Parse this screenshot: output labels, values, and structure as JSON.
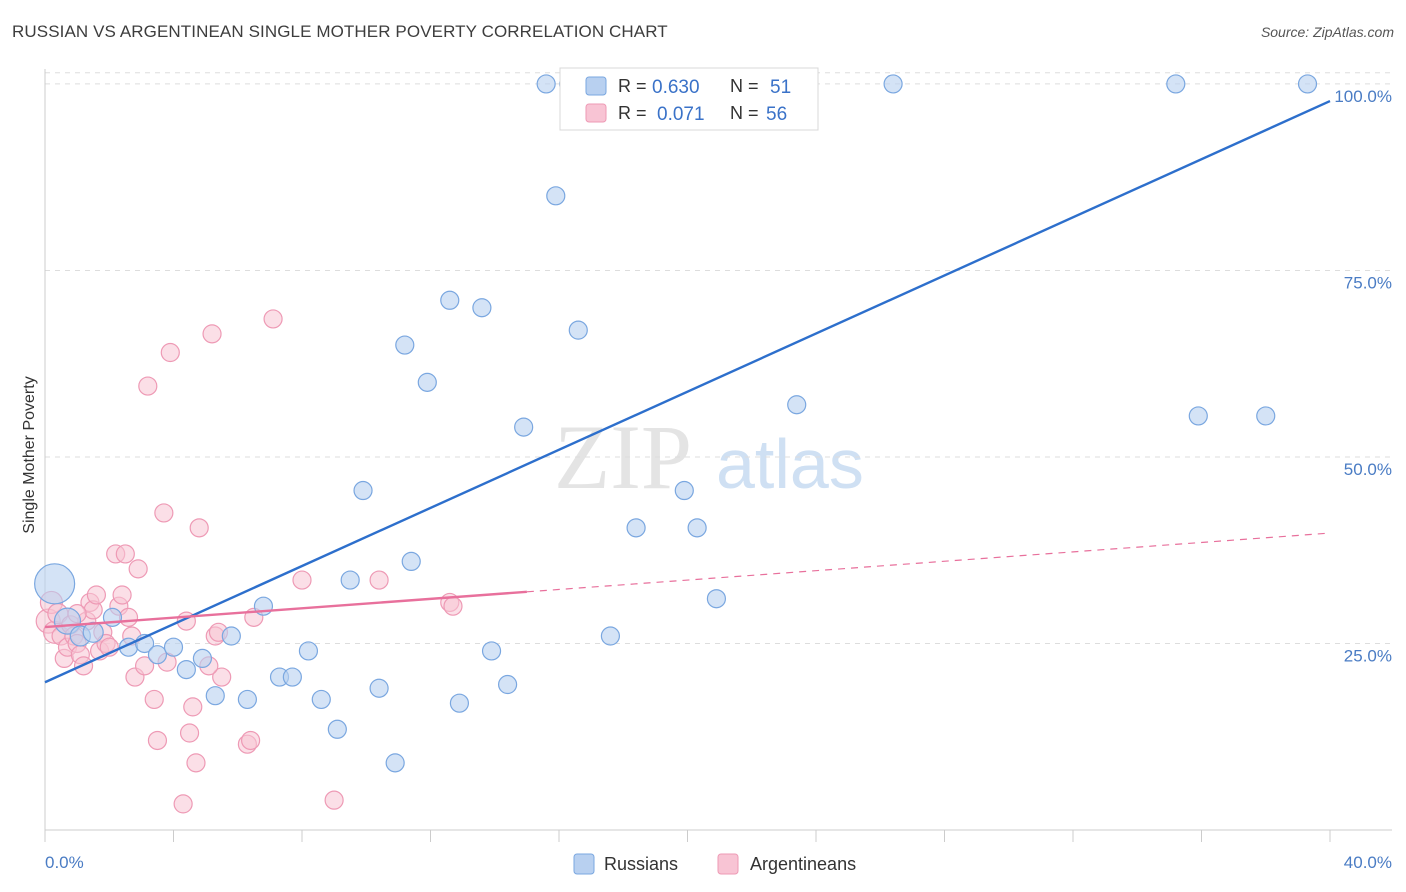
{
  "header": {
    "title": "RUSSIAN VS ARGENTINEAN SINGLE MOTHER POVERTY CORRELATION CHART",
    "source": "Source: ZipAtlas.com"
  },
  "watermark": {
    "zip": "ZIP",
    "atlas": "atlas"
  },
  "legend": {
    "r_label": "R =",
    "n_label": "N =",
    "rows": [
      {
        "r": "0.630",
        "n": "51"
      },
      {
        "r": "0.071",
        "n": "56"
      }
    ]
  },
  "bottom_legend": [
    "Russians",
    "Argentineans"
  ],
  "axis": {
    "x_left": "0.0%",
    "x_right": "40.0%",
    "y_ticks": [
      "100.0%",
      "75.0%",
      "50.0%",
      "25.0%"
    ],
    "ylabel": "Single Mother Poverty"
  },
  "colors": {
    "russians_fill": "#b8d0f0",
    "russians_stroke": "#7aa7e0",
    "russians_line": "#2d6fcc",
    "argentineans_fill": "#f8c4d4",
    "argentineans_stroke": "#ee9ab5",
    "argentineans_line": "#e8709c",
    "tick_label": "#4a7cc4",
    "grid": "#dddddd"
  },
  "chart_data": {
    "type": "scatter",
    "xlim": [
      0,
      40
    ],
    "ylim": [
      0,
      102
    ],
    "y_ticks": [
      25,
      50,
      75,
      100
    ],
    "grid": true,
    "legend_position": "top-center",
    "series": [
      {
        "name": "Russians",
        "r": 0.63,
        "n": 51,
        "trend": {
          "x": [
            0,
            40
          ],
          "y": [
            19.8,
            97.7
          ],
          "dashed_from": null
        },
        "points": [
          {
            "x": 0.3,
            "y": 33.0,
            "s": 20
          },
          {
            "x": 0.7,
            "y": 28.0,
            "s": 13
          },
          {
            "x": 1.1,
            "y": 26.0,
            "s": 10
          },
          {
            "x": 1.5,
            "y": 26.5,
            "s": 10
          },
          {
            "x": 2.1,
            "y": 28.5,
            "s": 9
          },
          {
            "x": 2.6,
            "y": 24.5,
            "s": 9
          },
          {
            "x": 3.1,
            "y": 25.0,
            "s": 9
          },
          {
            "x": 3.5,
            "y": 23.5,
            "s": 9
          },
          {
            "x": 4.0,
            "y": 24.5,
            "s": 9
          },
          {
            "x": 4.4,
            "y": 21.5,
            "s": 9
          },
          {
            "x": 4.9,
            "y": 23.0,
            "s": 9
          },
          {
            "x": 5.3,
            "y": 18.0,
            "s": 9
          },
          {
            "x": 5.8,
            "y": 26.0,
            "s": 9
          },
          {
            "x": 6.3,
            "y": 17.5,
            "s": 9
          },
          {
            "x": 6.8,
            "y": 30.0,
            "s": 9
          },
          {
            "x": 7.3,
            "y": 20.5,
            "s": 9
          },
          {
            "x": 7.7,
            "y": 20.5,
            "s": 9
          },
          {
            "x": 8.2,
            "y": 24.0,
            "s": 9
          },
          {
            "x": 8.6,
            "y": 17.5,
            "s": 9
          },
          {
            "x": 9.1,
            "y": 13.5,
            "s": 9
          },
          {
            "x": 9.5,
            "y": 33.5,
            "s": 9
          },
          {
            "x": 9.9,
            "y": 45.5,
            "s": 9
          },
          {
            "x": 10.4,
            "y": 19.0,
            "s": 9
          },
          {
            "x": 10.9,
            "y": 9.0,
            "s": 9
          },
          {
            "x": 11.2,
            "y": 65.0,
            "s": 9
          },
          {
            "x": 11.4,
            "y": 36.0,
            "s": 9
          },
          {
            "x": 11.9,
            "y": 60.0,
            "s": 9
          },
          {
            "x": 12.6,
            "y": 71.0,
            "s": 9
          },
          {
            "x": 12.9,
            "y": 17.0,
            "s": 9
          },
          {
            "x": 13.6,
            "y": 70.0,
            "s": 9
          },
          {
            "x": 13.9,
            "y": 24.0,
            "s": 9
          },
          {
            "x": 14.4,
            "y": 19.5,
            "s": 9
          },
          {
            "x": 15.6,
            "y": 100.0,
            "s": 9
          },
          {
            "x": 15.9,
            "y": 85.0,
            "s": 9
          },
          {
            "x": 16.3,
            "y": 100.0,
            "s": 9
          },
          {
            "x": 16.6,
            "y": 67.0,
            "s": 9
          },
          {
            "x": 17.3,
            "y": 100.0,
            "s": 9
          },
          {
            "x": 17.6,
            "y": 26.0,
            "s": 9
          },
          {
            "x": 18.4,
            "y": 40.5,
            "s": 9
          },
          {
            "x": 19.9,
            "y": 45.5,
            "s": 9
          },
          {
            "x": 20.3,
            "y": 40.5,
            "s": 9
          },
          {
            "x": 20.9,
            "y": 31.0,
            "s": 9
          },
          {
            "x": 21.4,
            "y": 100.0,
            "s": 9
          },
          {
            "x": 22.5,
            "y": 100.0,
            "s": 9
          },
          {
            "x": 23.4,
            "y": 57.0,
            "s": 9
          },
          {
            "x": 26.4,
            "y": 100.0,
            "s": 9
          },
          {
            "x": 35.2,
            "y": 100.0,
            "s": 9
          },
          {
            "x": 35.9,
            "y": 55.5,
            "s": 9
          },
          {
            "x": 38.0,
            "y": 55.5,
            "s": 9
          },
          {
            "x": 39.3,
            "y": 100.0,
            "s": 9
          },
          {
            "x": 14.9,
            "y": 54.0,
            "s": 9
          }
        ]
      },
      {
        "name": "Argentineans",
        "r": 0.071,
        "n": 56,
        "trend": {
          "x": [
            0,
            40
          ],
          "y": [
            27.2,
            39.8
          ],
          "dashed_from": 15
        },
        "points": [
          {
            "x": 0.1,
            "y": 28.0,
            "s": 12
          },
          {
            "x": 0.2,
            "y": 30.5,
            "s": 11
          },
          {
            "x": 0.3,
            "y": 26.5,
            "s": 11
          },
          {
            "x": 0.4,
            "y": 29.0,
            "s": 10
          },
          {
            "x": 0.5,
            "y": 26.0,
            "s": 9
          },
          {
            "x": 0.6,
            "y": 23.0,
            "s": 9
          },
          {
            "x": 0.7,
            "y": 24.5,
            "s": 9
          },
          {
            "x": 0.8,
            "y": 27.5,
            "s": 9
          },
          {
            "x": 0.9,
            "y": 26.0,
            "s": 9
          },
          {
            "x": 1.0,
            "y": 25.0,
            "s": 9
          },
          {
            "x": 1.1,
            "y": 23.5,
            "s": 9
          },
          {
            "x": 1.2,
            "y": 22.0,
            "s": 9
          },
          {
            "x": 1.3,
            "y": 28.0,
            "s": 9
          },
          {
            "x": 1.4,
            "y": 30.5,
            "s": 9
          },
          {
            "x": 1.5,
            "y": 29.5,
            "s": 9
          },
          {
            "x": 1.6,
            "y": 31.5,
            "s": 9
          },
          {
            "x": 1.7,
            "y": 24.0,
            "s": 9
          },
          {
            "x": 1.8,
            "y": 26.5,
            "s": 9
          },
          {
            "x": 1.9,
            "y": 25.0,
            "s": 9
          },
          {
            "x": 2.0,
            "y": 24.5,
            "s": 9
          },
          {
            "x": 2.2,
            "y": 37.0,
            "s": 9
          },
          {
            "x": 2.3,
            "y": 30.0,
            "s": 9
          },
          {
            "x": 2.4,
            "y": 31.5,
            "s": 9
          },
          {
            "x": 2.5,
            "y": 37.0,
            "s": 9
          },
          {
            "x": 2.6,
            "y": 28.5,
            "s": 9
          },
          {
            "x": 2.7,
            "y": 26.0,
            "s": 9
          },
          {
            "x": 2.8,
            "y": 20.5,
            "s": 9
          },
          {
            "x": 2.9,
            "y": 35.0,
            "s": 9
          },
          {
            "x": 3.1,
            "y": 22.0,
            "s": 9
          },
          {
            "x": 3.2,
            "y": 59.5,
            "s": 9
          },
          {
            "x": 3.4,
            "y": 17.5,
            "s": 9
          },
          {
            "x": 3.5,
            "y": 12.0,
            "s": 9
          },
          {
            "x": 3.7,
            "y": 42.5,
            "s": 9
          },
          {
            "x": 3.8,
            "y": 22.5,
            "s": 9
          },
          {
            "x": 3.9,
            "y": 64.0,
            "s": 9
          },
          {
            "x": 4.3,
            "y": 3.5,
            "s": 9
          },
          {
            "x": 4.4,
            "y": 28.0,
            "s": 9
          },
          {
            "x": 4.5,
            "y": 13.0,
            "s": 9
          },
          {
            "x": 4.6,
            "y": 16.5,
            "s": 9
          },
          {
            "x": 4.7,
            "y": 9.0,
            "s": 9
          },
          {
            "x": 4.8,
            "y": 40.5,
            "s": 9
          },
          {
            "x": 5.2,
            "y": 66.5,
            "s": 9
          },
          {
            "x": 5.3,
            "y": 26.0,
            "s": 9
          },
          {
            "x": 5.5,
            "y": 20.5,
            "s": 9
          },
          {
            "x": 5.4,
            "y": 26.5,
            "s": 9
          },
          {
            "x": 6.3,
            "y": 11.5,
            "s": 9
          },
          {
            "x": 6.4,
            "y": 12.0,
            "s": 9
          },
          {
            "x": 6.5,
            "y": 28.5,
            "s": 9
          },
          {
            "x": 7.1,
            "y": 68.5,
            "s": 9
          },
          {
            "x": 8.0,
            "y": 33.5,
            "s": 9
          },
          {
            "x": 9.0,
            "y": 4.0,
            "s": 9
          },
          {
            "x": 10.4,
            "y": 33.5,
            "s": 9
          },
          {
            "x": 12.6,
            "y": 30.5,
            "s": 9
          },
          {
            "x": 12.7,
            "y": 30.0,
            "s": 9
          },
          {
            "x": 5.1,
            "y": 22.0,
            "s": 9
          },
          {
            "x": 1.0,
            "y": 29.0,
            "s": 9
          }
        ]
      }
    ]
  }
}
